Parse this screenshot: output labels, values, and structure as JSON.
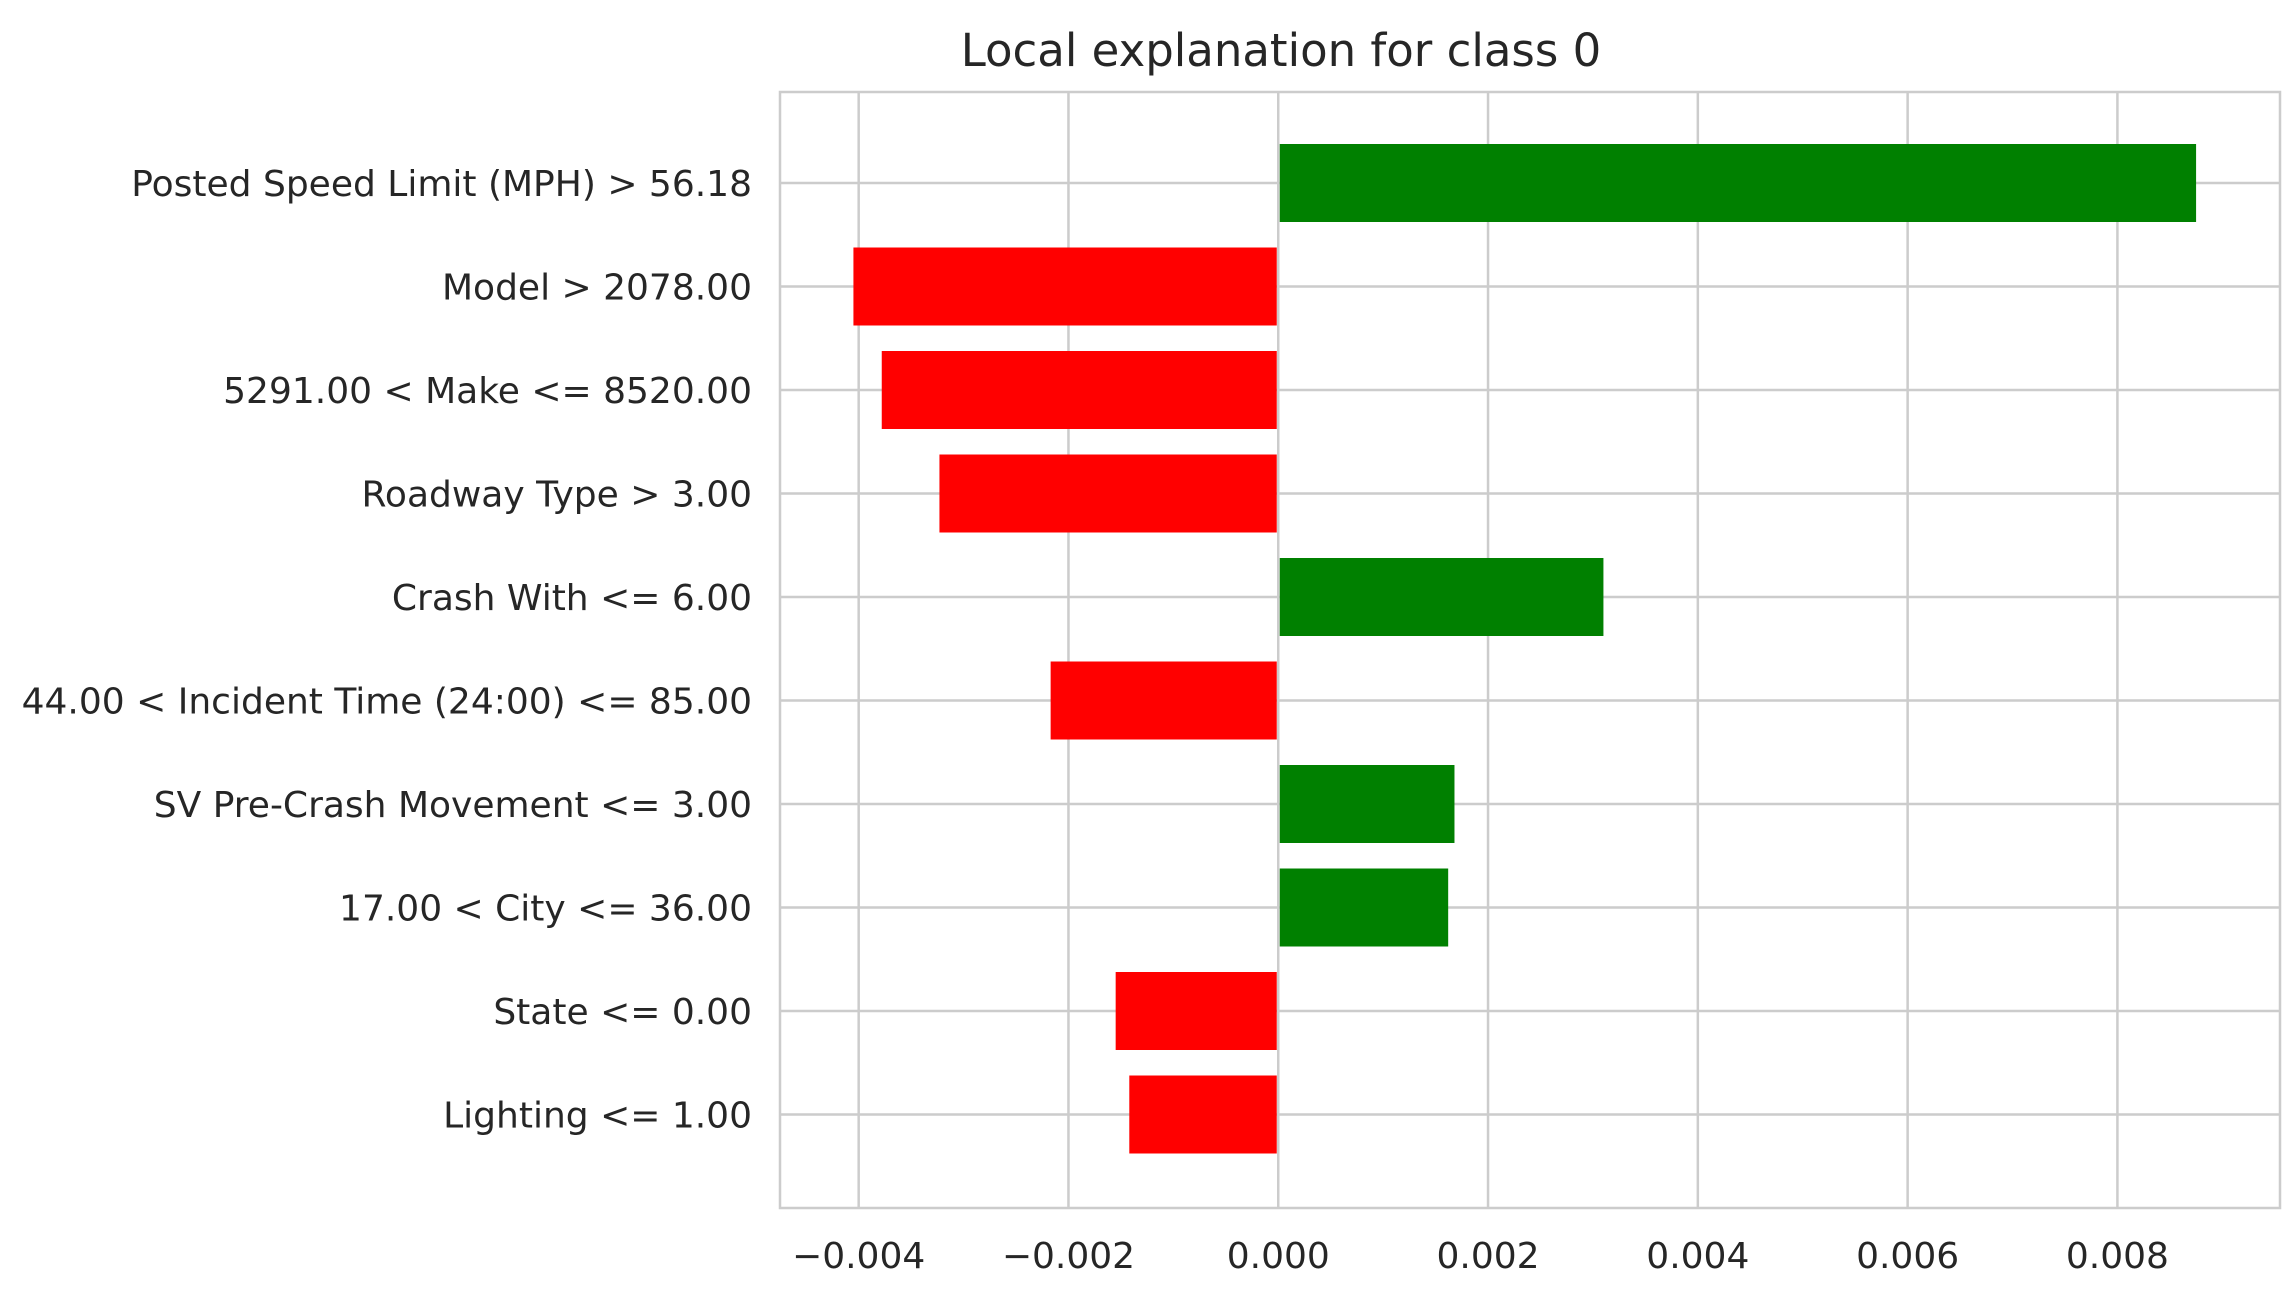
{
  "chart_data": {
    "type": "bar",
    "orientation": "horizontal",
    "title": "Local explanation for class 0",
    "xlabel": "",
    "ylabel": "",
    "xlim": [
      -0.00475,
      0.00955
    ],
    "xticks": [
      -0.004,
      -0.002,
      0.0,
      0.002,
      0.004,
      0.006,
      0.008
    ],
    "xtick_labels": [
      "−0.004",
      "−0.002",
      "0.000",
      "0.002",
      "0.004",
      "0.006",
      "0.008"
    ],
    "grid": true,
    "positive_color": "#008000",
    "negative_color": "#ff0000",
    "categories": [
      "Posted Speed Limit (MPH) > 56.18",
      "Model > 2078.00",
      "5291.00 < Make <= 8520.00",
      "Roadway Type > 3.00",
      "Crash With <= 6.00",
      "44.00 < Incident Time (24:00) <= 85.00",
      "SV Pre-Crash Movement <= 3.00",
      "17.00 < City <= 36.00",
      "State <= 0.00",
      "Lighting <= 1.00"
    ],
    "values": [
      0.00875,
      -0.00405,
      -0.00378,
      -0.00323,
      0.0031,
      -0.00217,
      0.00168,
      0.00162,
      -0.00155,
      -0.00142
    ]
  }
}
